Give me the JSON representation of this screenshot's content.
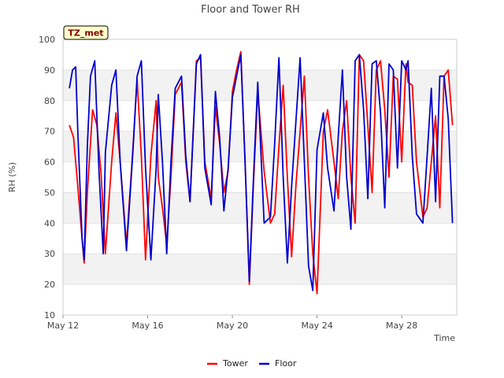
{
  "chart_data": {
    "type": "line",
    "title": "Floor and Tower RH",
    "xlabel": "Time",
    "ylabel": "RH (%)",
    "ylim": [
      10,
      100
    ],
    "yticks": [
      10,
      20,
      30,
      40,
      50,
      60,
      70,
      80,
      90,
      100
    ],
    "xlim": [
      0,
      18.6
    ],
    "xticks": [
      {
        "label": "May 12",
        "day": 0
      },
      {
        "label": "May 16",
        "day": 4
      },
      {
        "label": "May 20",
        "day": 8
      },
      {
        "label": "May 24",
        "day": 12
      },
      {
        "label": "May 28",
        "day": 16
      }
    ],
    "band_color": "#f2f2f2",
    "badge": "TZ_met",
    "legend": [
      "Tower",
      "Floor"
    ],
    "series": [
      {
        "name": "Tower",
        "color": "#ff0000",
        "day": [
          0.3,
          0.5,
          0.7,
          0.9,
          1.0,
          1.15,
          1.4,
          1.6,
          1.8,
          2.0,
          2.3,
          2.5,
          2.7,
          3.0,
          3.3,
          3.5,
          3.7,
          3.9,
          4.15,
          4.4,
          4.5,
          4.7,
          4.9,
          5.1,
          5.3,
          5.6,
          5.8,
          6.0,
          6.3,
          6.5,
          6.7,
          7.0,
          7.2,
          7.4,
          7.6,
          7.8,
          8.0,
          8.2,
          8.4,
          8.6,
          8.8,
          9.0,
          9.2,
          9.5,
          9.8,
          10.0,
          10.2,
          10.4,
          10.6,
          10.8,
          11.0,
          11.2,
          11.4,
          11.6,
          11.8,
          12.0,
          12.3,
          12.5,
          12.8,
          13.0,
          13.2,
          13.4,
          13.6,
          13.8,
          14.0,
          14.2,
          14.4,
          14.6,
          14.8,
          15.0,
          15.2,
          15.4,
          15.6,
          15.8,
          16.0,
          16.2,
          16.3,
          16.5,
          16.7,
          17.0,
          17.2,
          17.4,
          17.6,
          17.8,
          18.0,
          18.2,
          18.4
        ],
        "values": [
          72,
          68,
          52,
          35,
          27,
          50,
          77,
          72,
          56,
          30,
          60,
          76,
          60,
          33,
          64,
          87,
          62,
          28,
          62,
          80,
          55,
          45,
          33,
          55,
          82,
          86,
          60,
          47,
          93,
          94,
          60,
          48,
          78,
          66,
          50,
          57,
          83,
          90,
          96,
          60,
          20,
          53,
          83,
          57,
          40,
          43,
          65,
          85,
          55,
          29,
          52,
          70,
          88,
          55,
          30,
          17,
          70,
          77,
          60,
          48,
          70,
          80,
          55,
          40,
          95,
          93,
          72,
          50,
          90,
          93,
          77,
          55,
          88,
          87,
          60,
          92,
          86,
          85,
          60,
          42,
          45,
          60,
          75,
          45,
          88,
          90,
          72
        ]
      },
      {
        "name": "Floor",
        "color": "#0000cc",
        "day": [
          0.3,
          0.45,
          0.6,
          0.7,
          0.9,
          1.0,
          1.15,
          1.3,
          1.5,
          1.7,
          1.9,
          2.0,
          2.3,
          2.5,
          2.7,
          3.0,
          3.3,
          3.5,
          3.7,
          3.9,
          4.15,
          4.4,
          4.5,
          4.7,
          4.9,
          5.1,
          5.3,
          5.6,
          5.8,
          6.0,
          6.3,
          6.5,
          6.7,
          7.0,
          7.2,
          7.4,
          7.6,
          7.8,
          8.0,
          8.2,
          8.4,
          8.6,
          8.8,
          9.0,
          9.2,
          9.5,
          9.8,
          10.0,
          10.2,
          10.4,
          10.6,
          10.8,
          11.0,
          11.2,
          11.4,
          11.6,
          11.8,
          12.0,
          12.3,
          12.5,
          12.8,
          13.0,
          13.2,
          13.4,
          13.6,
          13.8,
          14.0,
          14.2,
          14.4,
          14.6,
          14.8,
          15.0,
          15.2,
          15.4,
          15.6,
          15.8,
          16.0,
          16.2,
          16.3,
          16.5,
          16.7,
          17.0,
          17.2,
          17.4,
          17.6,
          17.8,
          18.0,
          18.2,
          18.4
        ],
        "values": [
          84,
          90,
          91,
          70,
          35,
          28,
          65,
          88,
          93,
          57,
          30,
          63,
          85,
          90,
          60,
          31,
          63,
          88,
          93,
          58,
          28,
          58,
          82,
          60,
          30,
          60,
          84,
          88,
          62,
          47,
          92,
          95,
          58,
          46,
          83,
          68,
          44,
          58,
          81,
          88,
          95,
          60,
          21,
          55,
          86,
          40,
          42,
          66,
          94,
          55,
          27,
          52,
          73,
          94,
          60,
          26,
          18,
          64,
          76,
          58,
          44,
          68,
          90,
          55,
          38,
          93,
          95,
          77,
          48,
          92,
          93,
          76,
          45,
          92,
          90,
          58,
          93,
          90,
          93,
          62,
          43,
          40,
          62,
          84,
          47,
          88,
          88,
          74,
          40
        ]
      }
    ]
  }
}
